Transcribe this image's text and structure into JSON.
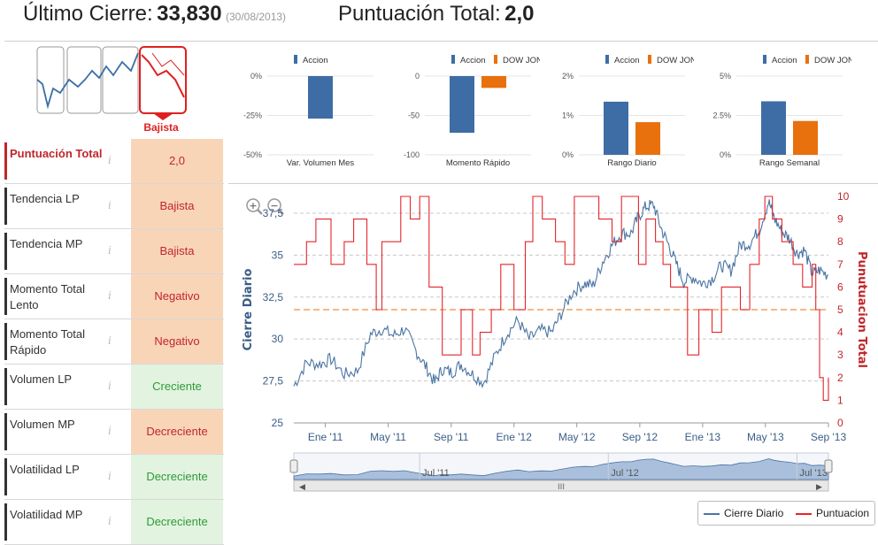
{
  "header": {
    "close_label": "Último Cierre:",
    "close_value": "33,830",
    "close_date": "(30/08/2013)",
    "score_label": "Puntuación Total:",
    "score_value": "2,0"
  },
  "trend_widget": {
    "label": "Bajista",
    "active_index": 3,
    "color_active": "#e02020",
    "color_normal": "#3b6fa8"
  },
  "rows": [
    {
      "name": "Puntuación Total",
      "info": "i",
      "value": "2,0",
      "status": "bad"
    },
    {
      "name": "Tendencia LP",
      "info": "i",
      "value": "Bajista",
      "status": "bad"
    },
    {
      "name": "Tendencia MP",
      "info": "i",
      "value": "Bajista",
      "status": "bad"
    },
    {
      "name": "Momento Total Lento",
      "info": "i",
      "value": "Negativo",
      "status": "bad"
    },
    {
      "name": "Momento Total Rápido",
      "info": "i",
      "value": "Negativo",
      "status": "bad"
    },
    {
      "name": "Volumen LP",
      "info": "i",
      "value": "Creciente",
      "status": "good"
    },
    {
      "name": "Volumen MP",
      "info": "i",
      "value": "Decreciente",
      "status": "bad"
    },
    {
      "name": "Volatilidad LP",
      "info": "i",
      "value": "Decreciente",
      "status": "good"
    },
    {
      "name": "Volatilidad MP",
      "info": "i",
      "value": "Decreciente",
      "status": "good"
    }
  ],
  "chart_data": [
    {
      "type": "bar",
      "id": "mini1",
      "xlabel": "Var. Volumen Mes",
      "series": [
        {
          "name": "Accion",
          "values": [
            -27
          ],
          "color": "#3e6da6"
        }
      ],
      "ylim": [
        -50,
        0
      ],
      "ticks": [
        0,
        -25,
        -50
      ],
      "tick_labels": [
        "0%",
        "-25%",
        "-50%"
      ]
    },
    {
      "type": "bar",
      "id": "mini2",
      "xlabel": "Momento Rápido",
      "series": [
        {
          "name": "Accion",
          "values": [
            -72
          ],
          "color": "#3e6da6"
        },
        {
          "name": "DOW JONES",
          "values": [
            -15
          ],
          "color": "#e8700d"
        }
      ],
      "ylim": [
        -100,
        0
      ],
      "ticks": [
        0,
        -50,
        -100
      ],
      "tick_labels": [
        "0",
        "-50",
        "-100"
      ]
    },
    {
      "type": "bar",
      "id": "mini3",
      "xlabel": "Rango Diario",
      "series": [
        {
          "name": "Accion",
          "values": [
            1.35
          ],
          "color": "#3e6da6"
        },
        {
          "name": "DOW JONES",
          "values": [
            0.83
          ],
          "color": "#e8700d"
        }
      ],
      "ylim": [
        0,
        2
      ],
      "ticks": [
        2,
        1,
        0
      ],
      "tick_labels": [
        "2%",
        "1%",
        "0%"
      ]
    },
    {
      "type": "bar",
      "id": "mini4",
      "xlabel": "Rango Semanal",
      "series": [
        {
          "name": "Accion",
          "values": [
            3.4
          ],
          "color": "#3e6da6"
        },
        {
          "name": "DOW JONES",
          "values": [
            2.15
          ],
          "color": "#e8700d"
        }
      ],
      "ylim": [
        0,
        5
      ],
      "ticks": [
        5,
        2.5,
        0
      ],
      "tick_labels": [
        "5%",
        "2.5%",
        "0%"
      ]
    },
    {
      "type": "line",
      "id": "main",
      "ylabel": "Cierre Diario",
      "y2label": "Punutuacion Total",
      "ylim": [
        25,
        38.5
      ],
      "yticks": [
        25,
        27.5,
        30,
        32.5,
        35,
        37.5
      ],
      "ytick_labels": [
        "25",
        "27,5",
        "30",
        "32,5",
        "35",
        "37,5"
      ],
      "y2lim": [
        0,
        10
      ],
      "y2ticks": [
        0,
        1,
        2,
        3,
        4,
        5,
        6,
        7,
        8,
        9,
        10
      ],
      "x_start": 2010.833,
      "x_end": 2013.667,
      "xticks": [
        2011.0,
        2011.333,
        2011.667,
        2012.0,
        2012.333,
        2012.667,
        2013.0,
        2013.333,
        2013.667
      ],
      "xtick_labels": [
        "Ene '11",
        "May '11",
        "Sep '11",
        "Ene '12",
        "May '12",
        "Sep '12",
        "Ene '13",
        "May '13",
        "Sep '13"
      ],
      "threshold": 5,
      "close": {
        "name": "Cierre Diario",
        "color": "#4a74a3",
        "x": [
          2010.833,
          2010.9,
          2010.97,
          2011.03,
          2011.1,
          2011.17,
          2011.24,
          2011.3,
          2011.36,
          2011.42,
          2011.48,
          2011.53,
          2011.58,
          2011.62,
          2011.67,
          2011.72,
          2011.78,
          2011.84,
          2011.9,
          2011.96,
          2012.02,
          2012.08,
          2012.14,
          2012.2,
          2012.25,
          2012.31,
          2012.37,
          2012.42,
          2012.47,
          2012.52,
          2012.57,
          2012.62,
          2012.66,
          2012.7,
          2012.74,
          2012.78,
          2012.82,
          2012.86,
          2012.9,
          2012.95,
          2013.0,
          2013.05,
          2013.1,
          2013.15,
          2013.2,
          2013.25,
          2013.3,
          2013.35,
          2013.38,
          2013.42,
          2013.46,
          2013.5,
          2013.54,
          2013.58,
          2013.62,
          2013.667
        ],
        "y": [
          27.2,
          28.6,
          28.5,
          28.8,
          27.9,
          28.1,
          30.3,
          30.6,
          30.2,
          30.6,
          29.3,
          28.4,
          27.4,
          28.2,
          28.0,
          28.5,
          27.9,
          27.4,
          29.0,
          30.3,
          31.1,
          30.0,
          30.5,
          30.4,
          31.5,
          32.8,
          33.3,
          33.2,
          34.6,
          35.6,
          36.3,
          36.3,
          37.3,
          37.9,
          38.0,
          36.6,
          35.6,
          34.5,
          33.4,
          33.7,
          33.3,
          33.6,
          34.4,
          34.1,
          35.6,
          35.7,
          36.5,
          38.2,
          37.2,
          36.4,
          36.0,
          35.1,
          35.3,
          33.9,
          34.1,
          33.8
        ]
      },
      "score": {
        "name": "Puntuacion",
        "color": "#e4252b",
        "x": [
          2010.833,
          2010.9,
          2010.95,
          2011.03,
          2011.1,
          2011.15,
          2011.22,
          2011.27,
          2011.3,
          2011.4,
          2011.45,
          2011.5,
          2011.55,
          2011.62,
          2011.66,
          2011.72,
          2011.78,
          2011.82,
          2011.88,
          2011.93,
          2012.0,
          2012.06,
          2012.1,
          2012.15,
          2012.22,
          2012.27,
          2012.32,
          2012.38,
          2012.45,
          2012.52,
          2012.57,
          2012.62,
          2012.66,
          2012.7,
          2012.75,
          2012.79,
          2012.83,
          2012.88,
          2012.92,
          2012.98,
          2013.05,
          2013.1,
          2013.15,
          2013.2,
          2013.25,
          2013.3,
          2013.33,
          2013.37,
          2013.42,
          2013.48,
          2013.53,
          2013.58,
          2013.6,
          2013.62,
          2013.64,
          2013.667
        ],
        "y": [
          7,
          8,
          9,
          7,
          8,
          9,
          7,
          5,
          8,
          10,
          9,
          10,
          6,
          3,
          3,
          5,
          3,
          4,
          5,
          7,
          5,
          8,
          10,
          9,
          8,
          7,
          10,
          10,
          9,
          8,
          10,
          10,
          7,
          9,
          8,
          7,
          6,
          6,
          3,
          5,
          4,
          6,
          6,
          5,
          7,
          9,
          10,
          9,
          8,
          7,
          6,
          7,
          5,
          2,
          1,
          2
        ]
      },
      "navigator": {
        "labels": [
          "Jul '11",
          "Jul '12",
          "Jul '13"
        ],
        "scroll_grip": "III"
      }
    }
  ],
  "legend": {
    "close": "Cierre Diario",
    "score": "Puntuacion"
  },
  "zoom": {
    "in": "+",
    "out": "−"
  }
}
